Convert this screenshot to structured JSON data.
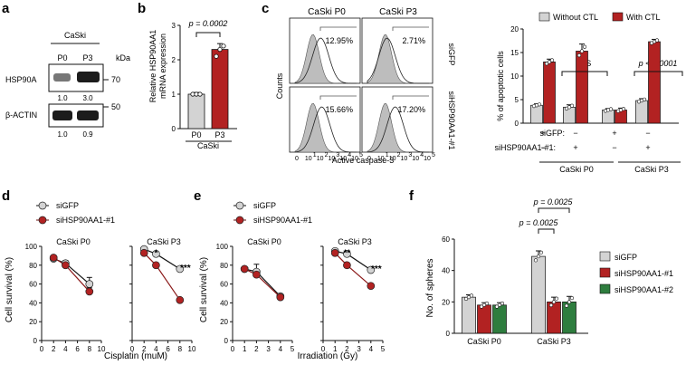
{
  "panels": {
    "a": {
      "label": "a",
      "cell_line": "CaSki",
      "lanes": [
        "P0",
        "P3"
      ],
      "kda_label": "kDa",
      "blots": [
        {
          "name": "HSP90A",
          "marker": "70",
          "quant": [
            "1.0",
            "3.0"
          ]
        },
        {
          "name": "β-ACTIN",
          "marker": "50",
          "quant": [
            "1.0",
            "0.9"
          ]
        }
      ]
    },
    "c": {
      "label": "c",
      "columns": [
        "CaSki P0",
        "CaSki P3"
      ],
      "rows": [
        "siGFP",
        "siHSP90AA1-#1"
      ],
      "ylabel": "Counts",
      "xlabel": "Active caspase-3",
      "percentages": [
        [
          "12.95%",
          "2.71%"
        ],
        [
          "15.66%",
          "17.20%"
        ]
      ],
      "tick_labels": [
        "0",
        "10",
        "1",
        "10",
        "2",
        "10",
        "3",
        "10",
        "4",
        "10",
        "5"
      ]
    }
  },
  "chart_data": [
    {
      "id": "b",
      "label": "b",
      "type": "bar",
      "categories": [
        "P0",
        "P3"
      ],
      "group_label": "CaSki",
      "values": [
        1.0,
        2.3
      ],
      "points": [
        [
          1.0,
          1.0,
          1.0
        ],
        [
          2.1,
          2.3,
          2.4
        ]
      ],
      "errors": [
        0.05,
        0.17
      ],
      "ylabel": "Relative HSP90AA1 mRNA expression",
      "ylabel_lines": [
        "Relative HSP90AA1",
        "mRNA expression"
      ],
      "ylim": [
        0,
        3
      ],
      "yticks": [
        "0",
        "1",
        "2",
        "3"
      ],
      "annotation": "p = 0.0002",
      "colors": [
        "#d3d3d3",
        "#b22222"
      ]
    },
    {
      "id": "c_bar",
      "type": "bar",
      "legend": [
        "Without CTL",
        "With CTL"
      ],
      "legend_placement": "top",
      "group_labels": [
        "CaSki P0",
        "CaSki P3"
      ],
      "row_labels": [
        "siGFP:",
        "siHSP90AA1-#1:"
      ],
      "row_signs": [
        [
          "+",
          "−",
          "+",
          "−"
        ],
        [
          "−",
          "+",
          "−",
          "+"
        ]
      ],
      "series": [
        {
          "name": "Without CTL",
          "values": [
            3.8,
            3.4,
            2.8,
            4.8
          ],
          "errors": [
            0.3,
            0.5,
            0.3,
            0.4
          ],
          "color": "#d3d3d3"
        },
        {
          "name": "With CTL",
          "values": [
            13.0,
            15.3,
            2.8,
            17.3
          ],
          "errors": [
            0.6,
            1.5,
            0.4,
            0.5
          ],
          "color": "#b22222"
        }
      ],
      "ylabel": "% of apoptotic cells",
      "ylim": [
        0,
        20
      ],
      "yticks": [
        "0",
        "5",
        "10",
        "15",
        "20"
      ],
      "annotations": [
        "NS",
        "p < 0.0001"
      ]
    },
    {
      "id": "d",
      "label": "d",
      "type": "line",
      "legend": [
        "siGFP",
        "siHSP90AA1-#1"
      ],
      "ylabel": "Cell survival (%)",
      "xlabel": "Cisplatin (muM)",
      "ylim": [
        0,
        100
      ],
      "yticks": [
        "0",
        "20",
        "40",
        "60",
        "80",
        "100"
      ],
      "xticks": [
        "0",
        "2",
        "4",
        "6",
        "8",
        "10"
      ],
      "xlim": [
        0,
        10
      ],
      "subplots": [
        {
          "title": "CaSki P0",
          "x": [
            2,
            4,
            8
          ],
          "series": [
            {
              "name": "siGFP",
              "values": [
                87,
                82,
                60
              ],
              "errors": [
                1,
                3,
                7
              ]
            },
            {
              "name": "siHSP90AA1-#1",
              "values": [
                88,
                80,
                52
              ],
              "errors": [
                1,
                2,
                4
              ]
            }
          ],
          "stars": []
        },
        {
          "title": "CaSki P3",
          "x": [
            2,
            4,
            8
          ],
          "series": [
            {
              "name": "siGFP",
              "values": [
                97,
                92,
                76
              ],
              "errors": [
                1,
                1,
                1
              ]
            },
            {
              "name": "siHSP90AA1-#1",
              "values": [
                93,
                80,
                43
              ],
              "errors": [
                1,
                1,
                1
              ]
            }
          ],
          "stars": [
            {
              "x": 4,
              "text": "*"
            },
            {
              "x": 8,
              "text": "***"
            }
          ]
        }
      ],
      "colors": {
        "siGFP": "#d3d3d3",
        "siHSP90AA1-#1": "#b22222"
      }
    },
    {
      "id": "e",
      "label": "e",
      "type": "line",
      "legend": [
        "siGFP",
        "siHSP90AA1-#1"
      ],
      "ylabel": "Cell survival (%)",
      "xlabel": "Irradiation (Gy)",
      "ylim": [
        0,
        100
      ],
      "yticks": [
        "0",
        "20",
        "40",
        "60",
        "80",
        "100"
      ],
      "xticks": [
        "0",
        "1",
        "2",
        "3",
        "4",
        "5"
      ],
      "xlim": [
        0,
        5
      ],
      "subplots": [
        {
          "title": "CaSki P0",
          "x": [
            1,
            2,
            4
          ],
          "series": [
            {
              "name": "siGFP",
              "values": [
                76,
                73,
                47
              ],
              "errors": [
                1,
                8,
                2
              ]
            },
            {
              "name": "siHSP90AA1-#1",
              "values": [
                76,
                70,
                46
              ],
              "errors": [
                1,
                3,
                2
              ]
            }
          ],
          "stars": []
        },
        {
          "title": "CaSki P3",
          "x": [
            1,
            2,
            4
          ],
          "series": [
            {
              "name": "siGFP",
              "values": [
                95,
                92,
                75
              ],
              "errors": [
                1,
                1,
                1
              ]
            },
            {
              "name": "siHSP90AA1-#1",
              "values": [
                93,
                80,
                58
              ],
              "errors": [
                1,
                1,
                1
              ]
            }
          ],
          "stars": [
            {
              "x": 2,
              "text": "**"
            },
            {
              "x": 4,
              "text": "***"
            }
          ]
        }
      ],
      "colors": {
        "siGFP": "#d3d3d3",
        "siHSP90AA1-#1": "#b22222"
      }
    },
    {
      "id": "f",
      "label": "f",
      "type": "bar",
      "categories": [
        "CaSki P0",
        "CaSki P3"
      ],
      "series": [
        {
          "name": "siGFP",
          "values": [
            23,
            49
          ],
          "errors": [
            1.5,
            3.5
          ],
          "color": "#d3d3d3"
        },
        {
          "name": "siHSP90AA1-#1",
          "values": [
            18,
            20
          ],
          "errors": [
            1.5,
            3
          ],
          "color": "#b22222"
        },
        {
          "name": "siHSP90AA1-#2",
          "values": [
            18,
            20
          ],
          "errors": [
            1.5,
            3.5
          ],
          "color": "#2e7d3e"
        }
      ],
      "ylabel": "No. of spheres",
      "ylim": [
        0,
        60
      ],
      "yticks": [
        "0",
        "20",
        "40",
        "60"
      ],
      "annotations": [
        "p = 0.0025",
        "p = 0.0025"
      ],
      "legend_placement": "right"
    }
  ]
}
